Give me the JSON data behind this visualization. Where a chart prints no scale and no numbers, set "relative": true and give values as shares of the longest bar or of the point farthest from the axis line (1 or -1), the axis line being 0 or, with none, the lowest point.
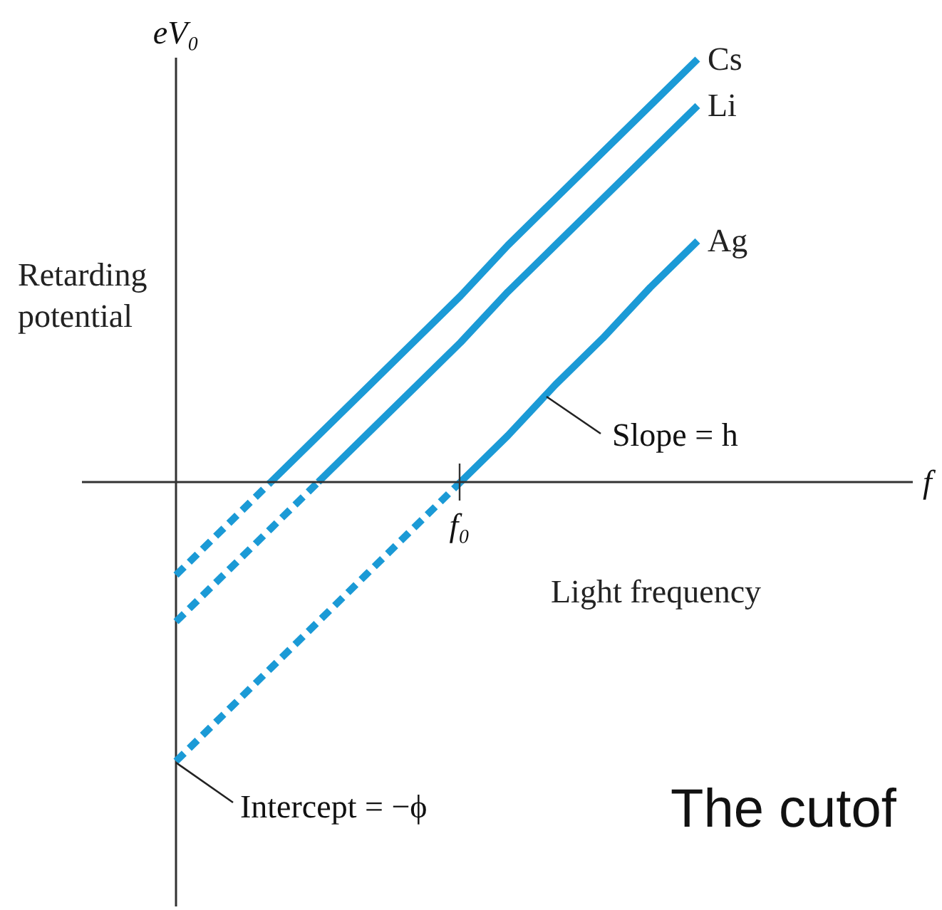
{
  "chart_data": {
    "type": "line",
    "relative": true,
    "xlabel": "Light frequency",
    "ylabel": "Retarding potential",
    "line_style": "solid",
    "categories": [
      null,
      null,
      null,
      null,
      null,
      null,
      null,
      null,
      null,
      null,
      null,
      null
    ],
    "series": [
      {
        "name": "Cs",
        "color": "#1b9ad6",
        "values": [
          null,
          null,
          0,
          0.11,
          0.22,
          0.33,
          0.44,
          0.56,
          0.67,
          0.78,
          0.89,
          1
        ]
      },
      {
        "name": "Li",
        "color": "#1b9ad6",
        "values": [
          null,
          null,
          null,
          0,
          0.11,
          0.22,
          0.33,
          0.45,
          0.56,
          0.67,
          0.78,
          0.89
        ]
      },
      {
        "name": "Ag",
        "color": "#1b9ad6",
        "values": [
          null,
          null,
          null,
          null,
          null,
          null,
          0,
          0.11,
          0.23,
          0.34,
          0.46,
          0.57
        ]
      },
      {
        "color": "#1b9ad6",
        "values": [
          -0.22,
          -0.11,
          0,
          null,
          null,
          null,
          null,
          null,
          null,
          null,
          null,
          null
        ],
        "line_style": "dashed"
      },
      {
        "color": "#1b9ad6",
        "values": [
          -0.33,
          -0.22,
          -0.11,
          0,
          null,
          null,
          null,
          null,
          null,
          null,
          null,
          null
        ],
        "line_style": "dashed"
      },
      {
        "color": "#1b9ad6",
        "values": [
          -0.66,
          -0.55,
          -0.44,
          -0.33,
          -0.22,
          -0.11,
          0,
          null,
          null,
          null,
          null,
          null
        ],
        "line_style": "dashed"
      }
    ],
    "annotations": [
      "eV₀",
      "f",
      "f₀",
      "Slope = h",
      "Intercept = −ϕ",
      "The cutof"
    ]
  }
}
